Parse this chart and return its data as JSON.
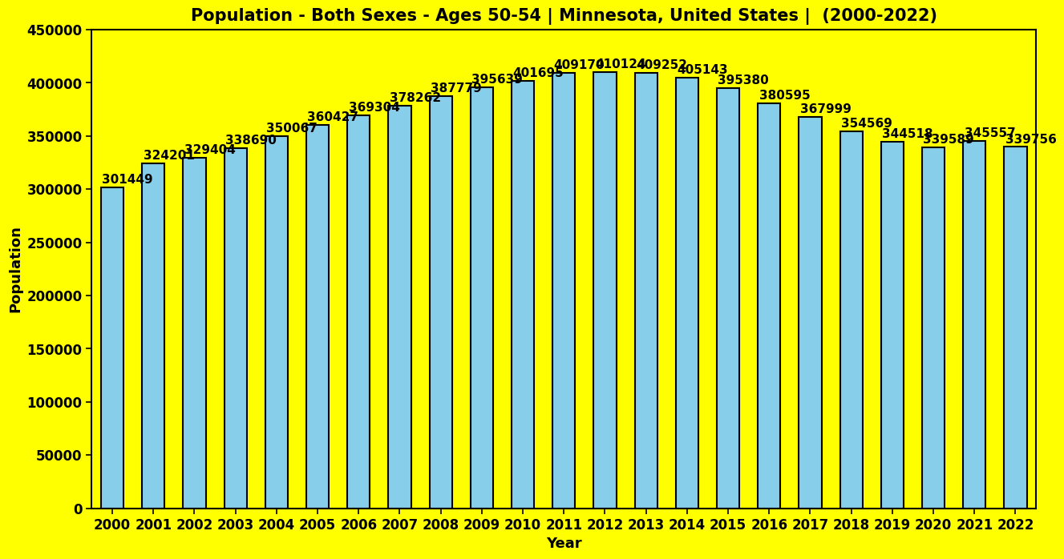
{
  "title": "Population - Both Sexes - Ages 50-54 | Minnesota, United States |  (2000-2022)",
  "xlabel": "Year",
  "ylabel": "Population",
  "background_color": "#FFFF00",
  "bar_color": "#87CEEB",
  "bar_edge_color": "#000000",
  "years": [
    2000,
    2001,
    2002,
    2003,
    2004,
    2005,
    2006,
    2007,
    2008,
    2009,
    2010,
    2011,
    2012,
    2013,
    2014,
    2015,
    2016,
    2017,
    2018,
    2019,
    2020,
    2021,
    2022
  ],
  "values": [
    301449,
    324201,
    329404,
    338690,
    350067,
    360427,
    369304,
    378262,
    387779,
    395639,
    401695,
    409170,
    410124,
    409252,
    405143,
    395380,
    380595,
    367999,
    354569,
    344518,
    339589,
    345557,
    339756
  ],
  "ylim": [
    0,
    450000
  ],
  "yticks": [
    0,
    50000,
    100000,
    150000,
    200000,
    250000,
    300000,
    350000,
    400000,
    450000
  ],
  "title_fontsize": 15,
  "axis_label_fontsize": 13,
  "tick_fontsize": 12,
  "value_label_fontsize": 11,
  "bar_width": 0.55
}
